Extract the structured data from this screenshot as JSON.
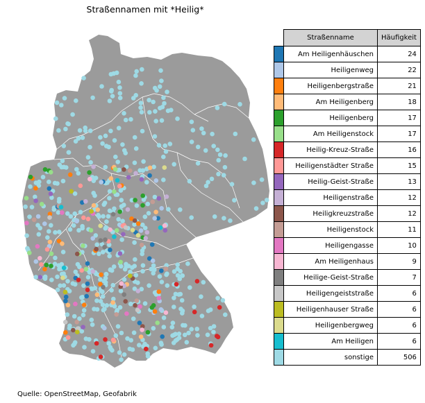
{
  "title": "Straßennamen mit *Heilig*",
  "source": "Quelle: OpenStreetMap, Geofabrik",
  "map_colors": {
    "land": "#9b9b9b",
    "border": "#ffffff"
  },
  "legend": {
    "headers": {
      "name": "Straßenname",
      "count": "Häufigkeit"
    },
    "rows": [
      {
        "name": "Am Heiligenhäuschen",
        "count": "24",
        "color": "#1f77b4"
      },
      {
        "name": "Heiligenweg",
        "count": "22",
        "color": "#aec7e8"
      },
      {
        "name": "Heiligenbergstraße",
        "count": "21",
        "color": "#ff7f0e"
      },
      {
        "name": "Am Heiligenberg",
        "count": "18",
        "color": "#ffbb78"
      },
      {
        "name": "Heiligenberg",
        "count": "17",
        "color": "#2ca02c"
      },
      {
        "name": "Am Heiligenstock",
        "count": "17",
        "color": "#98df8a"
      },
      {
        "name": "Heilig-Kreuz-Straße",
        "count": "16",
        "color": "#d62728"
      },
      {
        "name": "Heiligenstädter Straße",
        "count": "15",
        "color": "#ff9896"
      },
      {
        "name": "Heilig-Geist-Straße",
        "count": "13",
        "color": "#9467bd"
      },
      {
        "name": "Heiligenstraße",
        "count": "12",
        "color": "#c5b0d5"
      },
      {
        "name": "Heiligkreuzstraße",
        "count": "12",
        "color": "#8c564b"
      },
      {
        "name": "Heiligenstock",
        "count": "11",
        "color": "#c49c94"
      },
      {
        "name": "Heiligengasse",
        "count": "10",
        "color": "#e377c2"
      },
      {
        "name": "Am Heiligenhaus",
        "count": "9",
        "color": "#f7b6d2"
      },
      {
        "name": "Heilige-Geist-Straße",
        "count": "7",
        "color": "#7f7f7f"
      },
      {
        "name": "Heiligengeiststraße",
        "count": "6",
        "color": "#c7c7c7"
      },
      {
        "name": "Heiligenhauser Straße",
        "count": "6",
        "color": "#bcbd22"
      },
      {
        "name": "Heiligenbergweg",
        "count": "6",
        "color": "#dbdb8d"
      },
      {
        "name": "Am Heiligen",
        "count": "6",
        "color": "#17becf"
      },
      {
        "name": "sonstige",
        "count": "506",
        "color": "#9edae5"
      }
    ]
  }
}
